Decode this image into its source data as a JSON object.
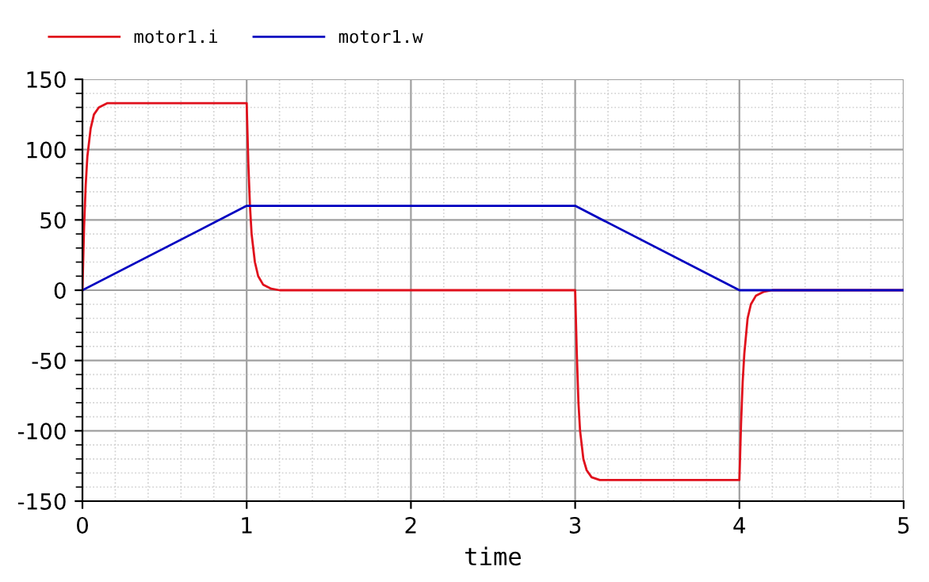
{
  "chart_data": {
    "type": "line",
    "xlabel": "time",
    "series": [
      {
        "name": "motor1.i",
        "color": "#e0101c",
        "x": [
          0,
          0.01,
          0.02,
          0.03,
          0.05,
          0.07,
          0.1,
          0.15,
          0.2,
          1.0,
          1.01,
          1.02,
          1.03,
          1.05,
          1.07,
          1.1,
          1.15,
          1.2,
          3.0,
          3.01,
          3.02,
          3.03,
          3.05,
          3.07,
          3.1,
          3.15,
          3.2,
          4.0,
          4.01,
          4.02,
          4.03,
          4.05,
          4.07,
          4.1,
          4.15,
          4.2,
          5
        ],
        "values": [
          0,
          45,
          75,
          95,
          115,
          125,
          130,
          133,
          133,
          133,
          90,
          60,
          40,
          20,
          10,
          4,
          1,
          0,
          0,
          -45,
          -80,
          -100,
          -120,
          -128,
          -133,
          -135,
          -135,
          -135,
          -95,
          -65,
          -45,
          -20,
          -10,
          -4,
          -1,
          0,
          0
        ]
      },
      {
        "name": "motor1.w",
        "color": "#0000c0",
        "x": [
          0,
          1,
          3,
          4,
          5
        ],
        "values": [
          0,
          60,
          60,
          0,
          0
        ]
      }
    ],
    "xlim": [
      0,
      5
    ],
    "xticks": [
      0,
      1,
      2,
      3,
      4,
      5
    ],
    "ylim": [
      -150,
      150
    ],
    "yticks": [
      -150,
      -100,
      -50,
      0,
      50,
      100,
      150
    ],
    "grid": true,
    "legend": "top left",
    "line_style": "solid",
    "marker": "none"
  }
}
